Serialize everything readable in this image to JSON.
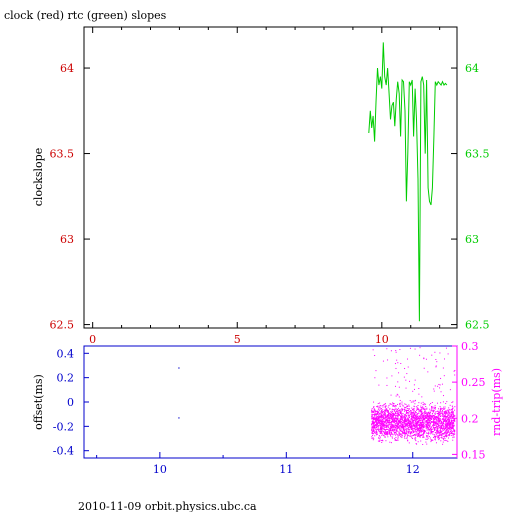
{
  "header": {
    "title": "clock (red) rtc (green) slopes"
  },
  "footer": {
    "text": "2010-11-09  orbit.physics.ubc.ca"
  },
  "colors": {
    "clock": "#cc0000",
    "rtc": "#00cc00",
    "offset": "#0000cc",
    "rtrip": "#ff00ff",
    "axis": "#000000"
  },
  "chart_data": [
    {
      "type": "line",
      "title": "clock (red) rtc (green) slopes",
      "xlabel": "",
      "ylabel": "clockslope",
      "xlim": [
        -0.3,
        12.6
      ],
      "ylim": [
        62.48,
        64.24
      ],
      "x_ticks": [
        0,
        5,
        10
      ],
      "y_ticks": [
        62.5,
        63,
        63.5,
        64
      ],
      "y_ticks_right": [
        62.5,
        63,
        63.5,
        64
      ],
      "grid": false,
      "series": [
        {
          "color": "#00cc00",
          "x": [
            9.55,
            9.6,
            9.65,
            9.7,
            9.75,
            9.8,
            9.85,
            9.9,
            9.95,
            10.0,
            10.05,
            10.1,
            10.15,
            10.2,
            10.25,
            10.3,
            10.35,
            10.4,
            10.45,
            10.5,
            10.55,
            10.6,
            10.65,
            10.7,
            10.75,
            10.8,
            10.85,
            10.9,
            10.95,
            11.0,
            11.05,
            11.1,
            11.15,
            11.2,
            11.25,
            11.3,
            11.35,
            11.4,
            11.45,
            11.5,
            11.55,
            11.6,
            11.65,
            11.7,
            11.75,
            11.8,
            11.85,
            11.9,
            11.95,
            12.0,
            12.05,
            12.1,
            12.15,
            12.2,
            12.25
          ],
          "values": [
            63.62,
            63.75,
            63.65,
            63.72,
            63.57,
            63.8,
            64.0,
            63.9,
            63.95,
            63.88,
            64.15,
            63.95,
            63.9,
            64.0,
            63.85,
            63.7,
            63.78,
            63.8,
            63.66,
            63.82,
            63.92,
            63.85,
            63.6,
            63.93,
            63.92,
            63.75,
            63.22,
            63.5,
            63.92,
            63.9,
            63.93,
            63.6,
            63.88,
            63.7,
            63.35,
            62.52,
            63.92,
            63.95,
            63.9,
            63.5,
            63.93,
            63.3,
            63.22,
            63.2,
            63.3,
            63.6,
            63.92,
            63.9,
            63.92,
            63.91,
            63.9,
            63.92,
            63.9,
            63.91,
            63.9
          ]
        }
      ]
    },
    {
      "type": "scatter",
      "xlabel": "",
      "ylabel": "offset(ms)",
      "ylabel_right": "rnd-trip(ms)",
      "xlim": [
        9.4,
        12.35
      ],
      "ylim": [
        -0.46,
        0.46
      ],
      "ylim_right": [
        0.145,
        0.3
      ],
      "x_ticks": [
        10,
        11,
        12
      ],
      "y_ticks": [
        -0.4,
        -0.2,
        0,
        0.2,
        0.4
      ],
      "y_ticks_right": [
        0.15,
        0.2,
        0.25,
        0.3
      ],
      "grid": false,
      "series": [
        {
          "color": "#0000cc",
          "x": [
            10.15,
            10.15
          ],
          "values": [
            0.28,
            -0.13
          ]
        },
        {
          "color": "#ff00ff",
          "x_range": [
            11.67,
            12.33
          ],
          "values_range": [
            0.16,
            0.23
          ],
          "outliers_max": 0.3,
          "axis": "right"
        }
      ]
    }
  ]
}
